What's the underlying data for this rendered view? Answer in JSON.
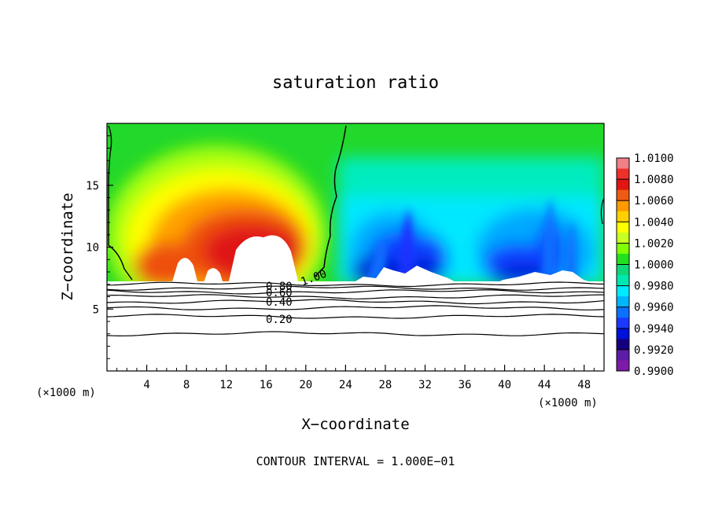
{
  "chart_data": {
    "type": "contour",
    "title": "saturation ratio",
    "xlabel": "X−coordinate",
    "ylabel": "Z−coordinate",
    "x_unit_left": "(×1000 m)",
    "x_unit_right": "(×1000 m)",
    "xlim": [
      0,
      50
    ],
    "ylim": [
      0,
      20
    ],
    "x_ticks": [
      4,
      8,
      12,
      16,
      20,
      24,
      28,
      32,
      36,
      40,
      44,
      48
    ],
    "y_ticks": [
      5,
      10,
      15
    ],
    "footer": "CONTOUR INTERVAL = 1.000E−01",
    "colorbar": {
      "labels": [
        "1.0100",
        "1.0080",
        "1.0060",
        "1.0040",
        "1.0020",
        "1.0000",
        "0.9980",
        "0.9960",
        "0.9940",
        "0.9920",
        "0.9900"
      ],
      "range": [
        0.99,
        1.01
      ],
      "colors": [
        "#f07f86",
        "#ef2f2a",
        "#e11613",
        "#ee5b12",
        "#ff9a00",
        "#ffd000",
        "#ffff00",
        "#c8ff20",
        "#7fff00",
        "#20e020",
        "#0fd878",
        "#00e8b0",
        "#00eaff",
        "#00b4ff",
        "#0a72ff",
        "#1a38ff",
        "#0010d8",
        "#14007f",
        "#5d1ca8",
        "#7d1aa7"
      ]
    },
    "contour_labels": [
      "0.80",
      "0.60",
      "0.40",
      "0.20",
      "1.00"
    ],
    "contour_levels_z": [
      3.0,
      4.4,
      5.1,
      5.6,
      6.0,
      6.4,
      6.7,
      7.0
    ],
    "unsaturated_top_z": 7.2
  }
}
